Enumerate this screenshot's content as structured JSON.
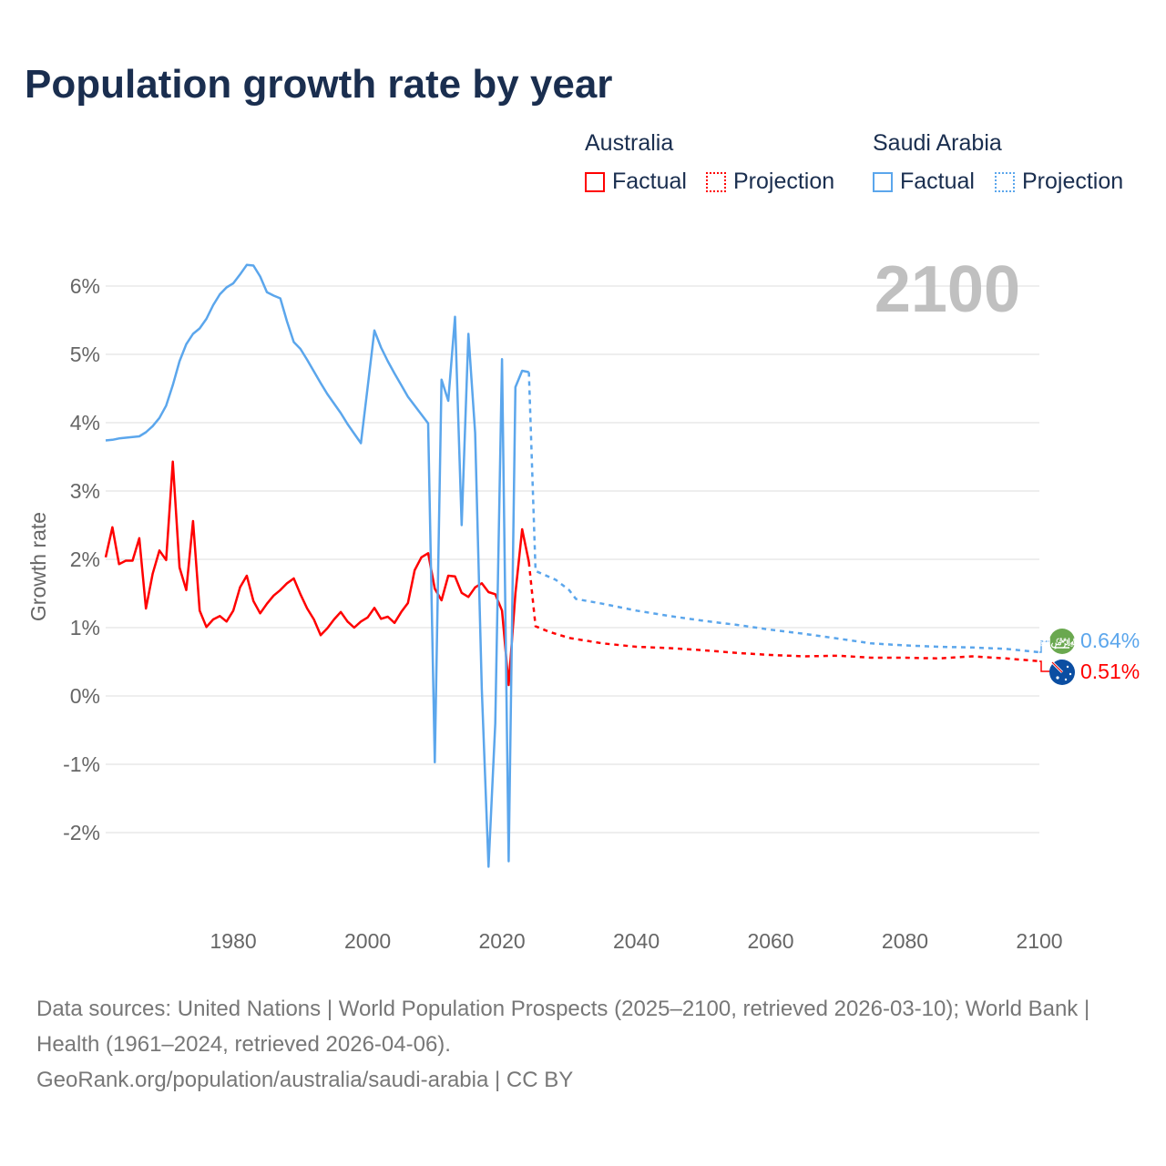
{
  "title": "Population growth rate by year",
  "legend": {
    "groups": [
      {
        "name": "Australia",
        "color": "#ff0000",
        "factual": "Factual",
        "projection": "Projection"
      },
      {
        "name": "Saudi Arabia",
        "color": "#5ba6ec",
        "factual": "Factual",
        "projection": "Projection"
      }
    ]
  },
  "year_label": "2100",
  "end_labels": {
    "saudi": "0.64%",
    "australia": "0.51%"
  },
  "footer": {
    "line1": "Data sources: United Nations | World Population Prospects (2025–2100, retrieved 2026-03-10); World Bank | Health (1961–2024, retrieved 2026-04-06).",
    "line2": "GeoRank.org/population/australia/saudi-arabia | CC BY"
  },
  "chart_data": {
    "type": "line",
    "title": "Population growth rate by year",
    "xlabel": "",
    "ylabel": "Growth rate",
    "xlim": [
      1961,
      2100
    ],
    "ylim": [
      -3,
      6.6
    ],
    "x_ticks": [
      1980,
      2000,
      2020,
      2040,
      2060,
      2080,
      2100
    ],
    "y_ticks": [
      -2,
      -1,
      0,
      1,
      2,
      3,
      4,
      5,
      6
    ],
    "y_tick_labels": [
      "-2%",
      "-1%",
      "0%",
      "1%",
      "2%",
      "3%",
      "4%",
      "5%",
      "6%"
    ],
    "grid": true,
    "legend_placement": "top-right",
    "series": [
      {
        "name": "Australia Factual",
        "color": "#ff0000",
        "dash": false,
        "x": [
          1961,
          1962,
          1963,
          1964,
          1965,
          1966,
          1967,
          1968,
          1969,
          1970,
          1971,
          1972,
          1973,
          1974,
          1975,
          1976,
          1977,
          1978,
          1979,
          1980,
          1981,
          1982,
          1983,
          1984,
          1985,
          1986,
          1987,
          1988,
          1989,
          1990,
          1991,
          1992,
          1993,
          1994,
          1995,
          1996,
          1997,
          1998,
          1999,
          2000,
          2001,
          2002,
          2003,
          2004,
          2005,
          2006,
          2007,
          2008,
          2009,
          2010,
          2011,
          2012,
          2013,
          2014,
          2015,
          2016,
          2017,
          2018,
          2019,
          2020,
          2021,
          2022,
          2023,
          2024
        ],
        "y": [
          2.03,
          2.47,
          1.93,
          1.98,
          1.98,
          2.31,
          1.28,
          1.79,
          2.13,
          1.99,
          3.43,
          1.88,
          1.55,
          2.56,
          1.25,
          1.01,
          1.12,
          1.17,
          1.09,
          1.25,
          1.59,
          1.76,
          1.39,
          1.21,
          1.35,
          1.47,
          1.55,
          1.65,
          1.72,
          1.49,
          1.28,
          1.12,
          0.89,
          0.99,
          1.12,
          1.23,
          1.09,
          1.0,
          1.09,
          1.15,
          1.29,
          1.13,
          1.16,
          1.07,
          1.23,
          1.36,
          1.84,
          2.03,
          2.09,
          1.57,
          1.4,
          1.76,
          1.75,
          1.51,
          1.45,
          1.59,
          1.65,
          1.52,
          1.49,
          1.25,
          0.16,
          1.5,
          2.44,
          1.96
        ]
      },
      {
        "name": "Australia Projection",
        "color": "#ff0000",
        "dash": true,
        "x": [
          2024,
          2025,
          2027,
          2030,
          2035,
          2040,
          2045,
          2050,
          2055,
          2060,
          2065,
          2070,
          2075,
          2080,
          2085,
          2090,
          2095,
          2100
        ],
        "y": [
          1.96,
          1.02,
          0.94,
          0.85,
          0.77,
          0.72,
          0.7,
          0.67,
          0.63,
          0.6,
          0.58,
          0.59,
          0.56,
          0.56,
          0.55,
          0.58,
          0.55,
          0.51
        ]
      },
      {
        "name": "Saudi Arabia Factual",
        "color": "#5ba6ec",
        "dash": false,
        "x": [
          1961,
          1962,
          1963,
          1964,
          1965,
          1966,
          1967,
          1968,
          1969,
          1970,
          1971,
          1972,
          1973,
          1974,
          1975,
          1976,
          1977,
          1978,
          1979,
          1980,
          1981,
          1982,
          1983,
          1984,
          1985,
          1986,
          1987,
          1988,
          1989,
          1990,
          1991,
          1992,
          1993,
          1994,
          1995,
          1996,
          1997,
          1998,
          1999,
          2000,
          2001,
          2002,
          2003,
          2004,
          2005,
          2006,
          2007,
          2008,
          2009,
          2010,
          2011,
          2012,
          2013,
          2014,
          2015,
          2016,
          2017,
          2018,
          2019,
          2020,
          2021,
          2022,
          2023,
          2024
        ],
        "y": [
          3.74,
          3.75,
          3.77,
          3.78,
          3.79,
          3.8,
          3.86,
          3.95,
          4.07,
          4.25,
          4.55,
          4.9,
          5.15,
          5.3,
          5.38,
          5.52,
          5.72,
          5.88,
          5.98,
          6.04,
          6.17,
          6.31,
          6.3,
          6.14,
          5.91,
          5.86,
          5.82,
          5.48,
          5.18,
          5.08,
          4.92,
          4.75,
          4.58,
          4.42,
          4.28,
          4.14,
          3.98,
          3.84,
          3.7,
          4.52,
          5.35,
          5.1,
          4.9,
          4.72,
          4.55,
          4.38,
          4.25,
          4.12,
          3.99,
          -0.97,
          4.63,
          4.32,
          5.55,
          2.5,
          5.3,
          3.85,
          0.1,
          -2.5,
          -0.4,
          4.93,
          -2.42,
          4.52,
          4.76,
          4.74
        ]
      },
      {
        "name": "Saudi Arabia Projection",
        "color": "#5ba6ec",
        "dash": true,
        "x": [
          2024,
          2025,
          2028,
          2030,
          2031,
          2035,
          2040,
          2045,
          2050,
          2055,
          2060,
          2065,
          2070,
          2075,
          2080,
          2085,
          2090,
          2095,
          2100
        ],
        "y": [
          4.74,
          1.83,
          1.7,
          1.55,
          1.42,
          1.35,
          1.25,
          1.17,
          1.1,
          1.04,
          0.97,
          0.91,
          0.84,
          0.77,
          0.74,
          0.72,
          0.71,
          0.69,
          0.64
        ]
      }
    ]
  }
}
